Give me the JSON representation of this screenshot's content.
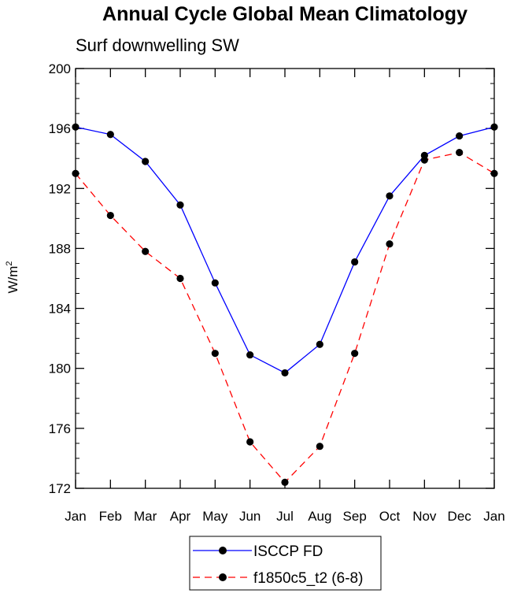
{
  "chart_data": {
    "type": "line",
    "title": "Annual Cycle Global Mean Climatology",
    "subtitle": "Surf downwelling SW",
    "xlabel": "",
    "ylabel": "W/m",
    "ylabel_sup": "2",
    "categories": [
      "Jan",
      "Feb",
      "Mar",
      "Apr",
      "May",
      "Jun",
      "Jul",
      "Aug",
      "Sep",
      "Oct",
      "Nov",
      "Dec",
      "Jan"
    ],
    "ylim": [
      172,
      200
    ],
    "yticks": [
      172,
      176,
      180,
      184,
      188,
      192,
      196,
      200
    ],
    "y_minor_step": 1,
    "grid": false,
    "legend_position": "bottom-center",
    "series": [
      {
        "name": "ISCCP FD",
        "color": "#0000ff",
        "dash": "solid",
        "values": [
          196.1,
          195.6,
          193.8,
          190.9,
          185.7,
          180.9,
          179.7,
          181.6,
          187.1,
          191.5,
          194.2,
          195.5,
          196.1
        ]
      },
      {
        "name": "f1850c5_t2 (6-8)",
        "color": "#ff0000",
        "dash": "dashed",
        "values": [
          193.0,
          190.2,
          187.8,
          186.0,
          181.0,
          175.1,
          172.4,
          174.8,
          181.0,
          188.3,
          193.9,
          194.4,
          193.0
        ]
      }
    ]
  }
}
